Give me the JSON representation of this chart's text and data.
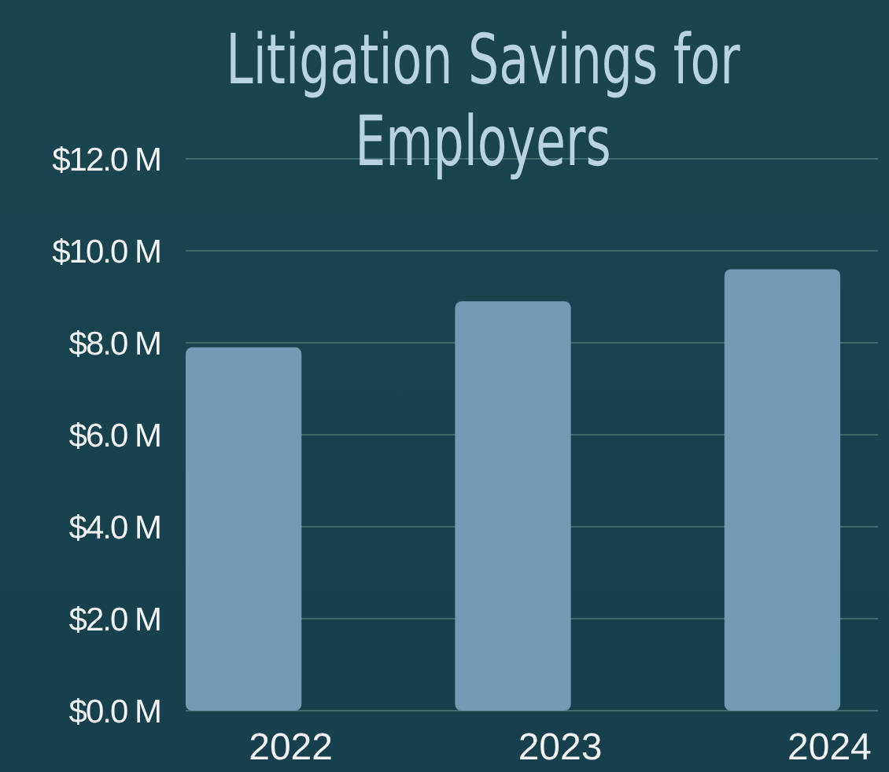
{
  "chart_data": {
    "type": "bar",
    "title": "Litigation Savings for Employers",
    "categories": [
      "2022",
      "2023",
      "2024"
    ],
    "values": [
      7.9,
      8.9,
      9.6
    ],
    "color": "#729bb5",
    "ylim": [
      0,
      12
    ],
    "yticks": [
      {
        "value": 0,
        "label": "$0.0 M"
      },
      {
        "value": 2,
        "label": "$2.0 M"
      },
      {
        "value": 4,
        "label": "$4.0 M"
      },
      {
        "value": 6,
        "label": "$6.0 M"
      },
      {
        "value": 8,
        "label": "$8.0 M"
      },
      {
        "value": 10,
        "label": "$10.0 M"
      },
      {
        "value": 12,
        "label": "$12.0 M"
      }
    ],
    "grid": "y"
  }
}
